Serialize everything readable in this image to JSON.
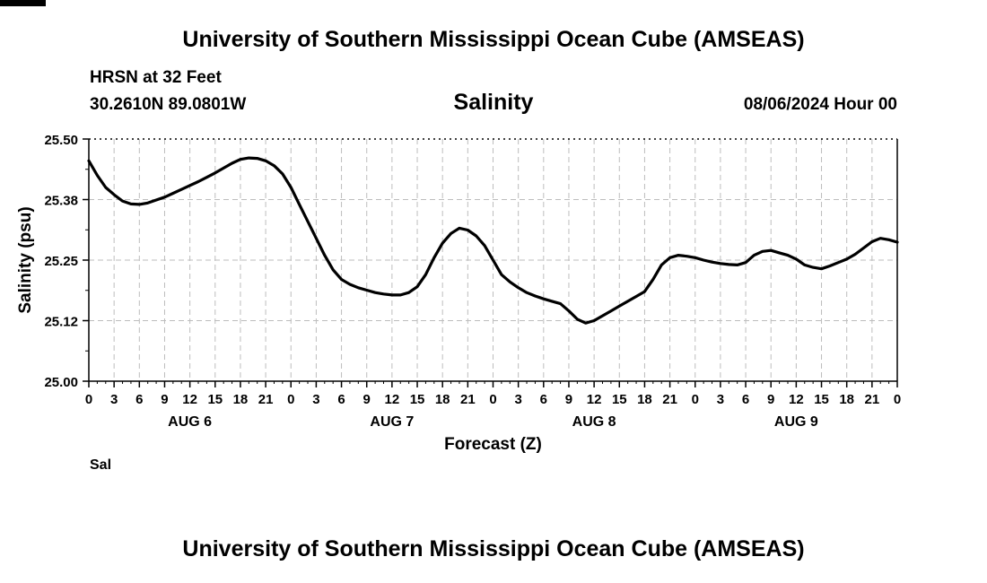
{
  "header": {
    "title_top": "University of Southern Mississippi Ocean Cube (AMSEAS)",
    "station": "HRSN at 32 Feet",
    "coords": "30.2610N  89.0801W",
    "chart_title": "Salinity",
    "datetime": "08/06/2024 Hour 00",
    "title_bottom": "University of Southern Mississippi Ocean Cube (AMSEAS)"
  },
  "chart_data": {
    "type": "line",
    "title": "Salinity",
    "xlabel": "Forecast (Z)",
    "ylabel": "Salinity (psu)",
    "xlim": [
      0,
      96
    ],
    "ylim": [
      25.0,
      25.5
    ],
    "yticks": [
      "25.00",
      "25.12",
      "25.25",
      "25.38",
      "25.50"
    ],
    "ytick_values": [
      25.0,
      25.125,
      25.25,
      25.375,
      25.5
    ],
    "xtick_hours": [
      0,
      3,
      6,
      9,
      12,
      15,
      18,
      21,
      24,
      27,
      30,
      33,
      36,
      39,
      42,
      45,
      48,
      51,
      54,
      57,
      60,
      63,
      66,
      69,
      72,
      75,
      78,
      81,
      84,
      87,
      90,
      93,
      96
    ],
    "xtick_labels": [
      "0",
      "3",
      "6",
      "9",
      "12",
      "15",
      "18",
      "21",
      "0",
      "3",
      "6",
      "9",
      "12",
      "15",
      "18",
      "21",
      "0",
      "3",
      "6",
      "9",
      "12",
      "15",
      "18",
      "21",
      "0",
      "3",
      "6",
      "9",
      "12",
      "15",
      "18",
      "21",
      "0"
    ],
    "day_labels": [
      {
        "label": "AUG 6",
        "hour": 12
      },
      {
        "label": "AUG 7",
        "hour": 36
      },
      {
        "label": "AUG 8",
        "hour": 60
      },
      {
        "label": "AUG 9",
        "hour": 84
      }
    ],
    "grid": true,
    "series": [
      {
        "name": "Sal",
        "x": [
          0,
          1,
          2,
          3,
          4,
          5,
          6,
          7,
          8,
          9,
          10,
          11,
          12,
          13,
          14,
          15,
          16,
          17,
          18,
          19,
          20,
          21,
          22,
          23,
          24,
          25,
          26,
          27,
          28,
          29,
          30,
          31,
          32,
          33,
          34,
          35,
          36,
          37,
          38,
          39,
          40,
          41,
          42,
          43,
          44,
          45,
          46,
          47,
          48,
          49,
          50,
          51,
          52,
          53,
          54,
          55,
          56,
          57,
          58,
          59,
          60,
          61,
          62,
          63,
          64,
          65,
          66,
          67,
          68,
          69,
          70,
          71,
          72,
          73,
          74,
          75,
          76,
          77,
          78,
          79,
          80,
          81,
          82,
          83,
          84,
          85,
          86,
          87,
          88,
          89,
          90,
          91,
          92,
          93,
          94,
          95,
          96
        ],
        "y": [
          25.455,
          25.425,
          25.4,
          25.385,
          25.372,
          25.366,
          25.365,
          25.368,
          25.374,
          25.38,
          25.388,
          25.396,
          25.404,
          25.412,
          25.421,
          25.43,
          25.44,
          25.45,
          25.458,
          25.461,
          25.46,
          25.455,
          25.445,
          25.428,
          25.4,
          25.365,
          25.33,
          25.295,
          25.26,
          25.23,
          25.21,
          25.2,
          25.193,
          25.188,
          25.183,
          25.18,
          25.178,
          25.178,
          25.183,
          25.195,
          25.22,
          25.255,
          25.285,
          25.305,
          25.316,
          25.312,
          25.3,
          25.28,
          25.25,
          25.22,
          25.205,
          25.193,
          25.183,
          25.176,
          25.17,
          25.165,
          25.16,
          25.145,
          25.128,
          25.12,
          25.125,
          25.135,
          25.145,
          25.155,
          25.165,
          25.175,
          25.185,
          25.21,
          25.24,
          25.255,
          25.26,
          25.258,
          25.255,
          25.25,
          25.246,
          25.243,
          25.241,
          25.24,
          25.245,
          25.26,
          25.268,
          25.27,
          25.265,
          25.26,
          25.252,
          25.24,
          25.235,
          25.232,
          25.238,
          25.245,
          25.252,
          25.262,
          25.275,
          25.288,
          25.295,
          25.292,
          25.287
        ]
      }
    ],
    "legend": [
      {
        "label": "Sal"
      }
    ]
  }
}
